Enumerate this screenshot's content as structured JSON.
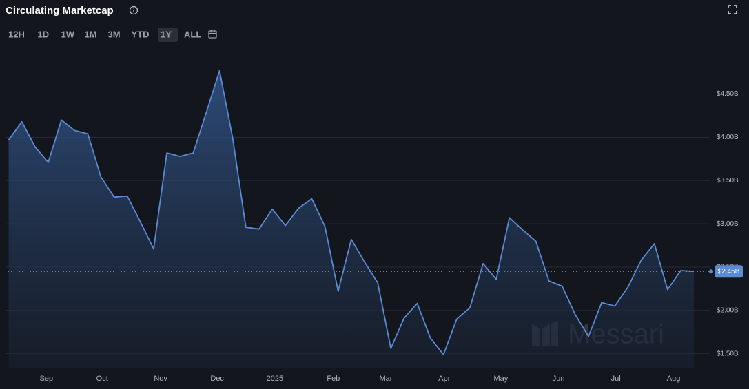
{
  "chart_data": {
    "type": "area",
    "title": "Circulating Marketcap",
    "ranges": [
      "12H",
      "1D",
      "1W",
      "1M",
      "3M",
      "YTD",
      "1Y",
      "ALL"
    ],
    "active_range": "1Y",
    "watermark": "Messari",
    "color": "#5b8bd6",
    "grid": true,
    "x": [
      0,
      1,
      2,
      3,
      4,
      5,
      6,
      7,
      8,
      9,
      10,
      11,
      12,
      13,
      14,
      15,
      16,
      17,
      18,
      19,
      20,
      21,
      22,
      23,
      24,
      25,
      26,
      27,
      28,
      29,
      30,
      31,
      32,
      33,
      34,
      35,
      36,
      37,
      38,
      39,
      40,
      41,
      42,
      43,
      44,
      45,
      46,
      47,
      48,
      49,
      50,
      51,
      52
    ],
    "values": [
      3.97,
      4.18,
      3.89,
      3.71,
      4.2,
      4.08,
      4.04,
      3.54,
      3.31,
      3.32,
      3.02,
      2.71,
      3.82,
      3.78,
      3.82,
      4.29,
      4.77,
      3.99,
      2.96,
      2.94,
      3.17,
      2.98,
      3.18,
      3.29,
      2.97,
      2.22,
      2.82,
      2.56,
      2.32,
      1.56,
      1.91,
      2.08,
      1.68,
      1.49,
      1.9,
      2.03,
      2.54,
      2.36,
      3.07,
      2.93,
      2.8,
      2.34,
      2.28,
      1.95,
      1.7,
      2.09,
      2.05,
      2.27,
      2.58,
      2.77,
      2.24,
      2.46,
      2.45
    ],
    "xlim": [
      -0.66,
      53.2
    ],
    "xticks": [
      {
        "value": 2.86,
        "label": "Sep"
      },
      {
        "value": 7.09,
        "label": "Oct"
      },
      {
        "value": 11.53,
        "label": "Nov"
      },
      {
        "value": 15.82,
        "label": "Dec"
      },
      {
        "value": 20.2,
        "label": "2025"
      },
      {
        "value": 24.64,
        "label": "Feb"
      },
      {
        "value": 28.62,
        "label": "Mar"
      },
      {
        "value": 33.06,
        "label": "Apr"
      },
      {
        "value": 37.35,
        "label": "May"
      },
      {
        "value": 41.73,
        "label": "Jun"
      },
      {
        "value": 46.07,
        "label": "Jul"
      },
      {
        "value": 50.46,
        "label": "Aug"
      }
    ],
    "ylim": [
      1.33,
      5.03
    ],
    "yticks": [
      {
        "value": 1.5,
        "label": "$1.50B"
      },
      {
        "value": 2.0,
        "label": "$2.00B"
      },
      {
        "value": 2.5,
        "label": "$2.50B"
      },
      {
        "value": 3.0,
        "label": "$3.00B"
      },
      {
        "value": 3.5,
        "label": "$3.50B"
      },
      {
        "value": 4.0,
        "label": "$4.00B"
      },
      {
        "value": 4.5,
        "label": "$4.50B"
      }
    ],
    "last_value": {
      "value": 2.45,
      "label": "$2.45B"
    }
  }
}
